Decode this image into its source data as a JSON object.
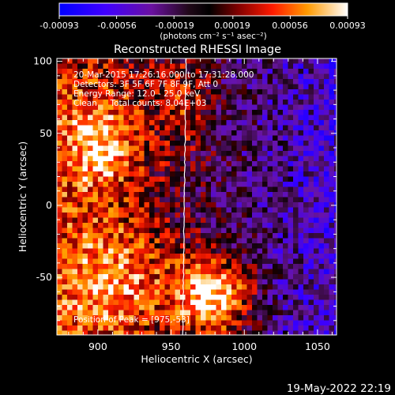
{
  "chart_data": {
    "type": "heatmap",
    "title": "Reconstructed RHESSI Image",
    "xlabel": "Heliocentric X (arcsec)",
    "ylabel": "Heliocentric Y (arcsec)",
    "xlim": [
      872,
      1063
    ],
    "ylim": [
      -90,
      102
    ],
    "xticks": [
      "900",
      "950",
      "1000",
      "1050"
    ],
    "xtick_values": [
      900,
      950,
      1000,
      1050
    ],
    "yticks": [
      "100",
      "50",
      "0",
      "-50"
    ],
    "ytick_values": [
      100,
      50,
      0,
      -50
    ],
    "colorbar": {
      "ticks": [
        "-0.00093",
        "-0.00056",
        "-0.00019",
        "0.00019",
        "0.00056",
        "0.00093"
      ],
      "tick_values": [
        -0.00093,
        -0.00056,
        -0.00019,
        0.00019,
        0.00056,
        0.00093
      ],
      "range": [
        -0.00093,
        0.00093
      ],
      "unit_label": "(photons cm⁻² s⁻¹ asec⁻²)",
      "colors": [
        "#0000ff",
        "#7a00ff",
        "#3a0a3a",
        "#000000",
        "#8a0000",
        "#ff2200",
        "#ffaa00",
        "#ffffff"
      ]
    },
    "annotations": [
      "20-Mar-2015 17:26:16.000 to 17:31:28.000",
      "Detectors: 3F 5F 6F 7F 8F 9F, Att 0",
      "Energy Range: 12.0 - 25.0 keV",
      "Clean     Total counts: 8.04E+03"
    ],
    "peak_label": "Position of Peak = [975,-53]",
    "peak_position": [
      975,
      -53
    ],
    "limb_line": true
  },
  "footer_date": "19-May-2022 22:19"
}
